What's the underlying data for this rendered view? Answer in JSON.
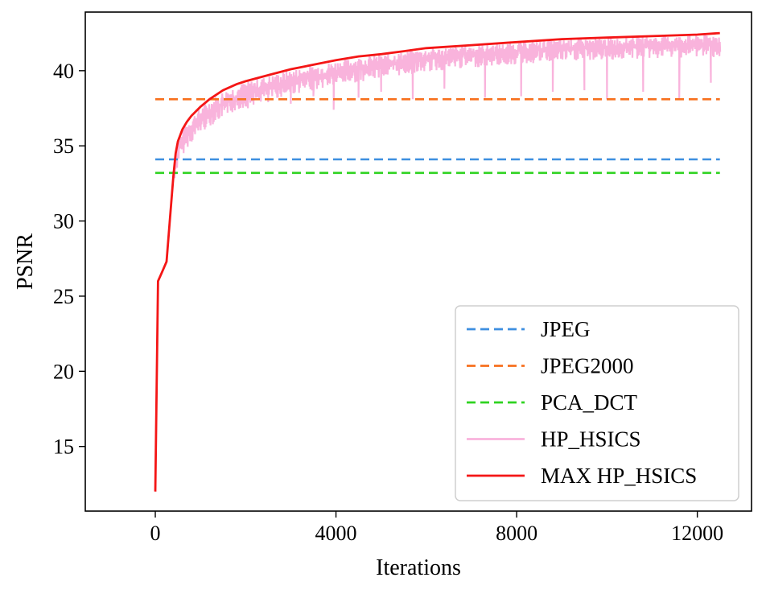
{
  "chart_data": {
    "type": "line",
    "title": "",
    "xlabel": "Iterations",
    "ylabel": "PSNR",
    "xlim": [
      -1550,
      13200
    ],
    "ylim": [
      10.7,
      43.9
    ],
    "xticks": [
      0,
      4000,
      8000,
      12000
    ],
    "xtick_labels": [
      "0",
      "4000",
      "8000",
      "12000"
    ],
    "yticks": [
      15,
      20,
      25,
      30,
      35,
      40
    ],
    "ytick_labels": [
      "15",
      "20",
      "25",
      "30",
      "35",
      "40"
    ],
    "grid": false,
    "legend_position": "lower-right",
    "series": [
      {
        "name": "JPEG",
        "style": "dashed",
        "color": "#3d8fe0",
        "x": [
          0,
          12500
        ],
        "y": [
          34.1,
          34.1
        ]
      },
      {
        "name": "JPEG2000",
        "style": "dashed",
        "color": "#f7701e",
        "x": [
          0,
          12500
        ],
        "y": [
          38.1,
          38.1
        ]
      },
      {
        "name": "PCA_DCT",
        "style": "dashed",
        "color": "#2fd321",
        "x": [
          0,
          12500
        ],
        "y": [
          33.2,
          33.2
        ]
      },
      {
        "name": "HP_HSICS",
        "style": "solid",
        "color": "#f9b3dc",
        "x": [
          0,
          60,
          150,
          250,
          320,
          400,
          500,
          700,
          1000,
          1500,
          2000,
          3000,
          4000,
          5000,
          6000,
          7000,
          8000,
          9000,
          10000,
          11000,
          12000,
          12500
        ],
        "y": [
          12.0,
          26.0,
          26.6,
          27.3,
          30.0,
          33.0,
          34.8,
          35.8,
          36.8,
          37.8,
          38.5,
          39.3,
          39.9,
          40.4,
          40.8,
          41.1,
          41.3,
          41.5,
          41.6,
          41.7,
          41.8,
          41.8
        ],
        "dips": [
          {
            "x": 950,
            "y": 36.3
          },
          {
            "x": 1300,
            "y": 36.9
          },
          {
            "x": 1600,
            "y": 37.2
          },
          {
            "x": 2050,
            "y": 37.5
          },
          {
            "x": 2500,
            "y": 37.9
          },
          {
            "x": 3000,
            "y": 37.8
          },
          {
            "x": 3500,
            "y": 38.3
          },
          {
            "x": 3950,
            "y": 37.4
          },
          {
            "x": 4500,
            "y": 38.2
          },
          {
            "x": 5000,
            "y": 38.6
          },
          {
            "x": 5700,
            "y": 38.1
          },
          {
            "x": 6400,
            "y": 38.8
          },
          {
            "x": 7300,
            "y": 38.2
          },
          {
            "x": 8100,
            "y": 38.3
          },
          {
            "x": 8800,
            "y": 38.6
          },
          {
            "x": 9500,
            "y": 38.7
          },
          {
            "x": 10000,
            "y": 38.1
          },
          {
            "x": 10800,
            "y": 38.6
          },
          {
            "x": 11600,
            "y": 38.1
          },
          {
            "x": 12300,
            "y": 39.2
          }
        ]
      },
      {
        "name": "MAX HP_HSICS",
        "style": "solid",
        "color": "#f41616",
        "x": [
          0,
          60,
          150,
          250,
          320,
          400,
          450,
          500,
          600,
          700,
          800,
          1000,
          1200,
          1500,
          1800,
          2000,
          2500,
          3000,
          3500,
          4000,
          4500,
          5000,
          5500,
          6000,
          7000,
          8000,
          9000,
          10000,
          11000,
          12000,
          12500
        ],
        "y": [
          12.0,
          26.0,
          26.6,
          27.3,
          30.0,
          33.0,
          34.5,
          35.3,
          36.1,
          36.6,
          37.0,
          37.6,
          38.1,
          38.7,
          39.1,
          39.3,
          39.7,
          40.1,
          40.4,
          40.7,
          40.95,
          41.1,
          41.3,
          41.5,
          41.7,
          41.9,
          42.1,
          42.2,
          42.3,
          42.4,
          42.5
        ]
      }
    ]
  }
}
